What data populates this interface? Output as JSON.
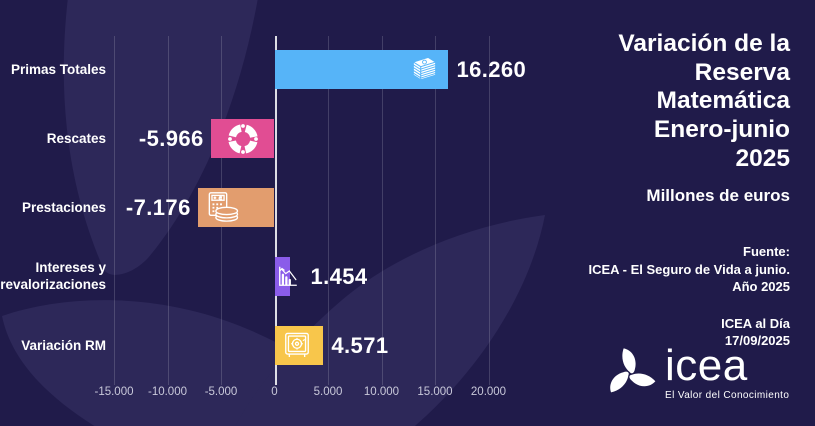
{
  "chart_data": {
    "type": "bar",
    "orientation": "horizontal",
    "title": "Variación de la Reserva Matemática Enero-junio 2025",
    "units": "Millones de euros",
    "categories": [
      "Primas Totales",
      "Rescates",
      "Prestaciones",
      "Intereses y revalorizaciones",
      "Variación RM"
    ],
    "values": [
      16260,
      -5966,
      -7176,
      1454,
      4571
    ],
    "value_labels": [
      "16.260",
      "-5.966",
      "-7.176",
      "1.454",
      "4.571"
    ],
    "bar_colors": [
      "#56b4f8",
      "#e14d93",
      "#e29d6e",
      "#8a5ce9",
      "#f8c64b"
    ],
    "icons": [
      "banknotes-icon",
      "lifebuoy-icon",
      "calculator-coins-icon",
      "declining-chart-icon",
      "safe-icon"
    ],
    "x_ticks": [
      "-15.000",
      "-10.000",
      "-5.000",
      "0",
      "5.000",
      "10.000",
      "15.000",
      "20.000"
    ],
    "x_tick_values": [
      -15000,
      -10000,
      -5000,
      0,
      5000,
      10000,
      15000,
      20000
    ],
    "xlim": [
      -15000,
      20000
    ],
    "grid": true,
    "legend": "none"
  },
  "side_panel": {
    "title_lines": "Variación de la\nReserva\nMatemática\nEnero-junio\n2025",
    "subtitle": "Millones de euros",
    "source": "Fuente:\nICEA - El Seguro de Vida a junio.\nAño 2025",
    "publication": "ICEA al Día\n17/09/2025",
    "logo_name": "icea",
    "logo_tagline": "El Valor del Conocimiento"
  },
  "colors": {
    "background": "#201b4a",
    "watermark_petal": "#2d2859",
    "text": "#ffffff",
    "tick_text": "#c9c9da"
  }
}
